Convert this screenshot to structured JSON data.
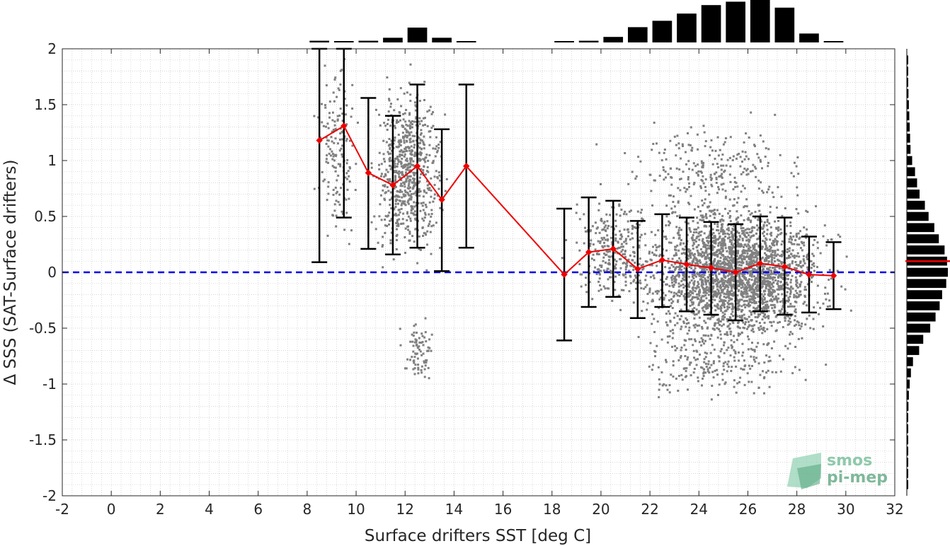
{
  "chart_data": {
    "type": "scatter",
    "title": "",
    "xlabel": "Surface drifters SST [deg C]",
    "ylabel": "Δ SSS (SAT-Surface drifters)",
    "xlim": [
      -2,
      32
    ],
    "ylim": [
      -2,
      2
    ],
    "x_ticks": [
      "-2",
      "0",
      "2",
      "4",
      "6",
      "8",
      "10",
      "12",
      "14",
      "16",
      "18",
      "20",
      "22",
      "24",
      "26",
      "28",
      "30",
      "32"
    ],
    "y_ticks": [
      "-2",
      "-1.5",
      "-1",
      "-0.5",
      "0",
      "0.5",
      "1",
      "1.5",
      "2"
    ],
    "grid": true,
    "reference_line": {
      "y": 0,
      "style": "dashed",
      "color": "#0000ee"
    },
    "series": [
      {
        "role": "binned mean ± std",
        "color": "#ee0000",
        "points": [
          {
            "x": 8.5,
            "mean": 1.18,
            "low": 0.09,
            "high": 2.0
          },
          {
            "x": 9.5,
            "mean": 1.31,
            "low": 0.49,
            "high": 2.0
          },
          {
            "x": 10.5,
            "mean": 0.89,
            "low": 0.21,
            "high": 1.56
          },
          {
            "x": 11.5,
            "mean": 0.78,
            "low": 0.16,
            "high": 1.4
          },
          {
            "x": 12.5,
            "mean": 0.95,
            "low": 0.22,
            "high": 1.68
          },
          {
            "x": 13.5,
            "mean": 0.65,
            "low": 0.01,
            "high": 1.28
          },
          {
            "x": 14.5,
            "mean": 0.95,
            "low": 0.22,
            "high": 1.68
          },
          {
            "x": 18.5,
            "mean": -0.02,
            "low": -0.61,
            "high": 0.57
          },
          {
            "x": 19.5,
            "mean": 0.18,
            "low": -0.31,
            "high": 0.67
          },
          {
            "x": 20.5,
            "mean": 0.21,
            "low": -0.22,
            "high": 0.64
          },
          {
            "x": 21.5,
            "mean": 0.03,
            "low": -0.41,
            "high": 0.46
          },
          {
            "x": 22.5,
            "mean": 0.11,
            "low": -0.31,
            "high": 0.52
          },
          {
            "x": 23.5,
            "mean": 0.07,
            "low": -0.35,
            "high": 0.49
          },
          {
            "x": 24.5,
            "mean": 0.04,
            "low": -0.38,
            "high": 0.45
          },
          {
            "x": 25.5,
            "mean": 0.0,
            "low": -0.43,
            "high": 0.43
          },
          {
            "x": 26.5,
            "mean": 0.08,
            "low": -0.35,
            "high": 0.5
          },
          {
            "x": 27.5,
            "mean": 0.05,
            "low": -0.38,
            "high": 0.49
          },
          {
            "x": 28.5,
            "mean": -0.02,
            "low": -0.36,
            "high": 0.32
          },
          {
            "x": 29.5,
            "mean": -0.03,
            "low": -0.33,
            "high": 0.27
          }
        ]
      }
    ],
    "scatter_density": [
      {
        "x_center": 9.2,
        "x_spread": 0.6,
        "y_center": 1.1,
        "y_spread": 0.55,
        "count": 160
      },
      {
        "x_center": 12.1,
        "x_spread": 1.0,
        "y_center": 0.9,
        "y_spread": 0.55,
        "count": 700
      },
      {
        "x_center": 12.5,
        "x_spread": 0.5,
        "y_center": -0.7,
        "y_spread": 0.2,
        "count": 80
      },
      {
        "x_center": 20.5,
        "x_spread": 1.3,
        "y_center": 0.2,
        "y_spread": 0.35,
        "count": 300
      },
      {
        "x_center": 25.5,
        "x_spread": 2.6,
        "y_center": 0.0,
        "y_spread": 0.45,
        "count": 2600
      },
      {
        "x_center": 24.8,
        "x_spread": 2.5,
        "y_center": -0.8,
        "y_spread": 0.25,
        "count": 220
      },
      {
        "x_center": 24.5,
        "x_spread": 2.6,
        "y_center": 0.9,
        "y_spread": 0.3,
        "count": 260
      }
    ],
    "top_histogram": {
      "bin_centers": [
        8.5,
        9.5,
        10.5,
        11.5,
        12.5,
        13.5,
        14.5,
        15.5,
        16.5,
        17.5,
        18.5,
        19.5,
        20.5,
        21.5,
        22.5,
        23.5,
        24.5,
        25.5,
        26.5,
        27.5,
        28.5,
        29.5
      ],
      "relative_counts": [
        0.04,
        0.03,
        0.04,
        0.11,
        0.35,
        0.11,
        0.02,
        0,
        0,
        0,
        0.02,
        0.04,
        0.13,
        0.36,
        0.51,
        0.68,
        0.88,
        0.96,
        1.0,
        0.82,
        0.21,
        0.02
      ]
    },
    "right_histogram": {
      "bin_centers": [
        1.9,
        1.8,
        1.7,
        1.6,
        1.5,
        1.4,
        1.3,
        1.2,
        1.1,
        1.0,
        0.9,
        0.8,
        0.7,
        0.6,
        0.5,
        0.4,
        0.3,
        0.2,
        0.1,
        0.0,
        -0.1,
        -0.2,
        -0.3,
        -0.4,
        -0.5,
        -0.6,
        -0.7,
        -0.8,
        -0.9,
        -1.0,
        -1.1,
        -1.2,
        -1.3,
        -1.4,
        -1.5,
        -1.6,
        -1.7,
        -1.8,
        -1.9
      ],
      "relative_counts": [
        0.02,
        0.02,
        0.03,
        0.04,
        0.05,
        0.06,
        0.07,
        0.08,
        0.09,
        0.13,
        0.2,
        0.25,
        0.31,
        0.44,
        0.53,
        0.67,
        0.78,
        0.92,
        0.98,
        1.0,
        0.96,
        0.86,
        0.8,
        0.7,
        0.57,
        0.4,
        0.3,
        0.15,
        0.1,
        0.07,
        0.05,
        0.04,
        0.03,
        0.02,
        0.02,
        0.02,
        0.02,
        0.02,
        0.02
      ],
      "mean_marker": 0.1,
      "mean_marker_color": "#ee0000"
    },
    "colors": {
      "scatter": "#808080",
      "mean_line": "#ee0000",
      "error_bars": "#000000",
      "histogram": "#000000",
      "zero_line": "#0000ee",
      "logo": "#5aa882"
    }
  },
  "logo": {
    "line1": "smos",
    "line2": "pi-mep"
  }
}
